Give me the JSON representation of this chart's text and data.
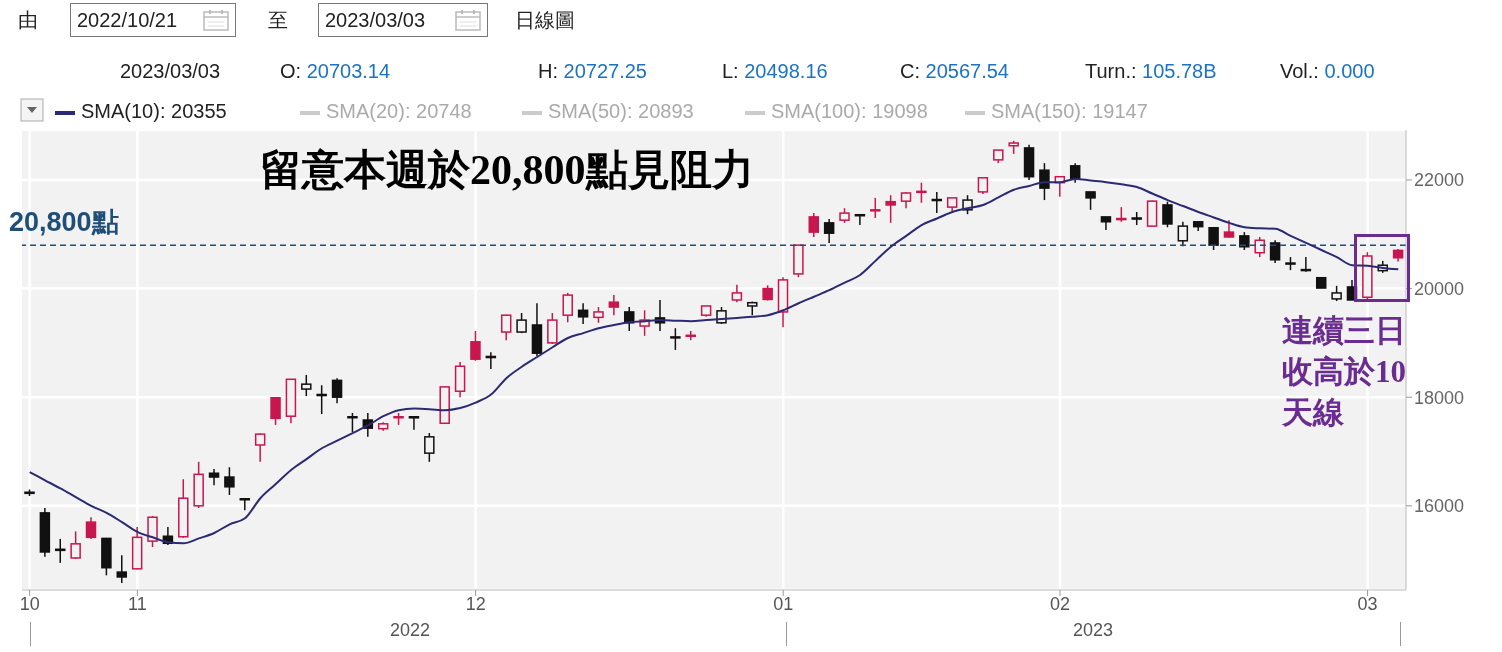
{
  "chart_data": {
    "type": "candlestick",
    "title": "留意本週於20,800點見阻力",
    "categories": [
      "10",
      null,
      null,
      null,
      null,
      null,
      null,
      "11",
      null,
      null,
      null,
      null,
      null,
      null,
      null,
      null,
      null,
      null,
      null,
      null,
      null,
      null,
      null,
      null,
      null,
      null,
      null,
      null,
      null,
      "12",
      null,
      null,
      null,
      null,
      null,
      null,
      null,
      null,
      null,
      null,
      null,
      null,
      null,
      null,
      null,
      null,
      null,
      null,
      null,
      "01",
      null,
      null,
      null,
      null,
      null,
      null,
      null,
      null,
      null,
      null,
      null,
      null,
      null,
      null,
      null,
      null,
      null,
      "02",
      null,
      null,
      null,
      null,
      null,
      null,
      null,
      null,
      null,
      null,
      null,
      null,
      null,
      null,
      null,
      null,
      null,
      null,
      null,
      "03",
      null,
      null
    ],
    "ohlc": [
      [
        16250,
        16300,
        16180,
        16230
      ],
      [
        15870,
        15960,
        15060,
        15150
      ],
      [
        15200,
        15390,
        14950,
        15180
      ],
      [
        15040,
        15530,
        15020,
        15300
      ],
      [
        15700,
        15790,
        15390,
        15420
      ],
      [
        15400,
        15410,
        14720,
        14860
      ],
      [
        14780,
        15090,
        14580,
        14690
      ],
      [
        14840,
        15610,
        14830,
        15420
      ],
      [
        15350,
        15810,
        15240,
        15790
      ],
      [
        15440,
        15610,
        15280,
        15310
      ],
      [
        15430,
        16490,
        15410,
        16140
      ],
      [
        16000,
        16810,
        15960,
        16580
      ],
      [
        16600,
        16680,
        16380,
        16530
      ],
      [
        16530,
        16710,
        16200,
        16350
      ],
      [
        16130,
        16130,
        15920,
        16120
      ],
      [
        17120,
        17330,
        16810,
        17320
      ],
      [
        17990,
        17990,
        17490,
        17610
      ],
      [
        17650,
        18330,
        17520,
        18330
      ],
      [
        18150,
        18410,
        18020,
        18240
      ],
      [
        18050,
        18220,
        17690,
        18030
      ],
      [
        18310,
        18350,
        17890,
        18000
      ],
      [
        17640,
        17710,
        17360,
        17630
      ],
      [
        17580,
        17710,
        17270,
        17430
      ],
      [
        17420,
        17540,
        17380,
        17510
      ],
      [
        17630,
        17710,
        17490,
        17640
      ],
      [
        17640,
        17650,
        17400,
        17620
      ],
      [
        16970,
        17340,
        16810,
        17270
      ],
      [
        17520,
        18190,
        17520,
        18190
      ],
      [
        18110,
        18650,
        18000,
        18570
      ],
      [
        19020,
        19220,
        18670,
        18700
      ],
      [
        18750,
        18830,
        18520,
        18730
      ],
      [
        19200,
        19520,
        19050,
        19510
      ],
      [
        19200,
        19550,
        19180,
        19420
      ],
      [
        19330,
        19730,
        18760,
        18810
      ],
      [
        19000,
        19550,
        18980,
        19420
      ],
      [
        19510,
        19920,
        19380,
        19880
      ],
      [
        19600,
        19730,
        19350,
        19480
      ],
      [
        19470,
        19660,
        19370,
        19570
      ],
      [
        19750,
        19880,
        19510,
        19660
      ],
      [
        19570,
        19660,
        19220,
        19370
      ],
      [
        19310,
        19600,
        19130,
        19420
      ],
      [
        19460,
        19790,
        19220,
        19370
      ],
      [
        19110,
        19270,
        18870,
        19100
      ],
      [
        19130,
        19220,
        19050,
        19140
      ],
      [
        19510,
        19680,
        19480,
        19680
      ],
      [
        19370,
        19660,
        19350,
        19590
      ],
      [
        19790,
        20070,
        19750,
        19920
      ],
      [
        19680,
        19760,
        19510,
        19740
      ],
      [
        20000,
        20060,
        19780,
        19800
      ],
      [
        19570,
        20210,
        19290,
        20160
      ],
      [
        20270,
        20800,
        20210,
        20800
      ],
      [
        21320,
        21390,
        20950,
        21040
      ],
      [
        21210,
        21280,
        20840,
        21020
      ],
      [
        21260,
        21480,
        21210,
        21390
      ],
      [
        21360,
        21360,
        21170,
        21350
      ],
      [
        21440,
        21670,
        21300,
        21450
      ],
      [
        21600,
        21720,
        21210,
        21540
      ],
      [
        21610,
        21780,
        21480,
        21760
      ],
      [
        21780,
        21950,
        21580,
        21790
      ],
      [
        21640,
        21780,
        21390,
        21630
      ],
      [
        21500,
        21670,
        21430,
        21670
      ],
      [
        21450,
        21720,
        21370,
        21630
      ],
      [
        21780,
        22040,
        21740,
        22040
      ],
      [
        22370,
        22550,
        22310,
        22550
      ],
      [
        22630,
        22720,
        22480,
        22680
      ],
      [
        22590,
        22650,
        22000,
        22060
      ],
      [
        22180,
        22310,
        21630,
        21850
      ],
      [
        21950,
        22060,
        21690,
        22060
      ],
      [
        22260,
        22310,
        21950,
        22020
      ],
      [
        21780,
        21780,
        21450,
        21670
      ],
      [
        21320,
        21320,
        21080,
        21230
      ],
      [
        21270,
        21500,
        21230,
        21290
      ],
      [
        21300,
        21410,
        21170,
        21280
      ],
      [
        21150,
        21620,
        21150,
        21610
      ],
      [
        21540,
        21600,
        21130,
        21190
      ],
      [
        20880,
        21230,
        20780,
        21150
      ],
      [
        21230,
        21230,
        21060,
        21140
      ],
      [
        21120,
        21120,
        20710,
        20800
      ],
      [
        21040,
        21260,
        20940,
        20950
      ],
      [
        20970,
        21040,
        20710,
        20770
      ],
      [
        20660,
        20950,
        20580,
        20890
      ],
      [
        20840,
        20890,
        20470,
        20530
      ],
      [
        20470,
        20580,
        20340,
        20460
      ],
      [
        20350,
        20580,
        20310,
        20340
      ],
      [
        20200,
        20210,
        20010,
        20010
      ],
      [
        19810,
        20050,
        19770,
        19920
      ],
      [
        20030,
        20160,
        19790,
        19790
      ],
      [
        19840,
        20670,
        19790,
        20600
      ],
      [
        20330,
        20510,
        20290,
        20430
      ],
      [
        20703.14,
        20727.25,
        20498.16,
        20567.54
      ]
    ],
    "colors": [
      "#111111",
      "#111111",
      "#111111",
      "#c8164e",
      "#c8164e",
      "#111111",
      "#111111",
      "#c8164e",
      "#c8164e",
      "#111111",
      "#c8164e",
      "#c8164e",
      "#111111",
      "#111111",
      "#111111",
      "#c8164e",
      "#c8164e",
      "#c8164e",
      "#111111",
      "#111111",
      "#111111",
      "#111111",
      "#111111",
      "#c8164e",
      "#c8164e",
      "#111111",
      "#111111",
      "#c8164e",
      "#c8164e",
      "#c8164e",
      "#111111",
      "#c8164e",
      "#111111",
      "#111111",
      "#c8164e",
      "#c8164e",
      "#111111",
      "#c8164e",
      "#c8164e",
      "#111111",
      "#c8164e",
      "#111111",
      "#111111",
      "#c8164e",
      "#c8164e",
      "#111111",
      "#c8164e",
      "#111111",
      "#c8164e",
      "#c8164e",
      "#c8164e",
      "#c8164e",
      "#111111",
      "#c8164e",
      "#111111",
      "#c8164e",
      "#c8164e",
      "#c8164e",
      "#c8164e",
      "#111111",
      "#c8164e",
      "#111111",
      "#c8164e",
      "#c8164e",
      "#c8164e",
      "#111111",
      "#111111",
      "#c8164e",
      "#111111",
      "#111111",
      "#111111",
      "#c8164e",
      "#111111",
      "#c8164e",
      "#111111",
      "#111111",
      "#111111",
      "#111111",
      "#c8164e",
      "#111111",
      "#c8164e",
      "#111111",
      "#111111",
      "#111111",
      "#111111",
      "#111111",
      "#111111",
      "#c8164e",
      "#111111",
      "#c8164e"
    ],
    "series": [
      {
        "name": "SMA(10): 20355",
        "type": "line",
        "color": "#2b2a72",
        "values": [
          16620,
          16470,
          16320,
          16160,
          16000,
          15870,
          15700,
          15520,
          15420,
          15330,
          15310,
          15400,
          15500,
          15660,
          15770,
          16140,
          16400,
          16660,
          16860,
          17060,
          17200,
          17340,
          17480,
          17650,
          17760,
          17790,
          17780,
          17760,
          17800,
          17900,
          18050,
          18350,
          18560,
          18740,
          18920,
          19090,
          19180,
          19270,
          19330,
          19380,
          19400,
          19420,
          19410,
          19400,
          19420,
          19440,
          19460,
          19480,
          19510,
          19600,
          19730,
          19850,
          19970,
          20110,
          20250,
          20510,
          20770,
          20970,
          21170,
          21290,
          21410,
          21480,
          21540,
          21680,
          21820,
          21890,
          21960,
          21960,
          22020,
          21990,
          21960,
          21920,
          21870,
          21750,
          21630,
          21520,
          21410,
          21310,
          21210,
          21130,
          21110,
          21100,
          20970,
          20840,
          20710,
          20580,
          20430,
          20420,
          20380,
          20355
        ]
      }
    ],
    "ylim": [
      14450,
      22920
    ],
    "yticks": [
      16000,
      18000,
      20000,
      22000
    ],
    "grid": true,
    "legend": "top left",
    "ref_lines": [
      {
        "axis": "y",
        "value": 20800,
        "label": "20,800點",
        "color": "#1f4e79",
        "line_style": "dashed"
      }
    ],
    "annotations": [
      "由",
      "2022/10/21",
      "至",
      "2023/03/03",
      "日線圖",
      "2023/03/03",
      "O: 20703.14",
      "H: 20727.25",
      "L: 20498.16",
      "C: 20567.54",
      "Turn.: 105.78B",
      "Vol.: 0.000",
      "SMA(20): 20748",
      "SMA(50): 20893",
      "SMA(100): 19098",
      "SMA(150): 19147",
      "2022",
      "2023",
      "連續三日收高於10天線"
    ]
  }
}
